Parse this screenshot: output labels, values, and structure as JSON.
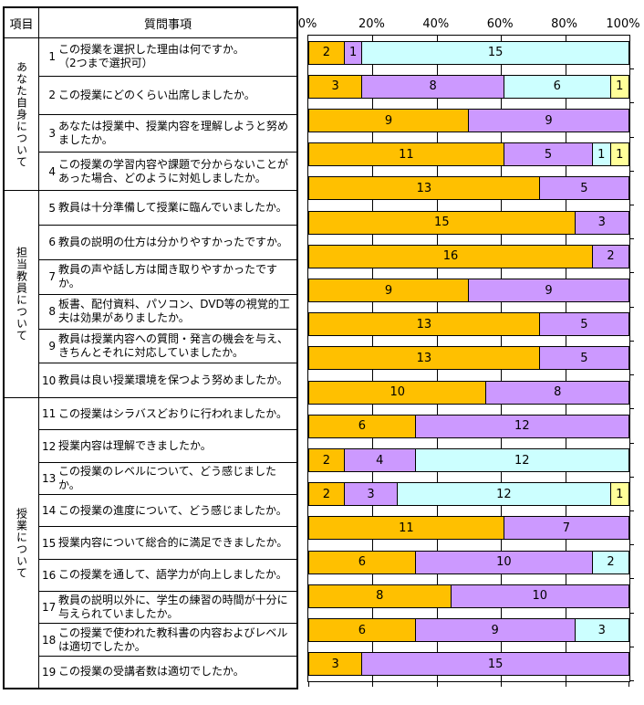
{
  "table": {
    "header": {
      "category_label": "項目",
      "question_label": "質問事項"
    },
    "groups": [
      {
        "label": "あなた自身について",
        "question_count": 4
      },
      {
        "label": "担当教員について",
        "question_count": 6
      },
      {
        "label": "授業について",
        "question_count": 9
      }
    ],
    "questions": [
      {
        "no": "1",
        "text": "この授業を選択した理由は何ですか。\n（2つまで選択可）"
      },
      {
        "no": "2",
        "text": "この授業にどのくらい出席しましたか。"
      },
      {
        "no": "3",
        "text": "あなたは授業中、授業内容を理解しようと努めましたか。"
      },
      {
        "no": "4",
        "text": "この授業の学習内容や課題で分からないことがあった場合、どのように対処しましたか。"
      },
      {
        "no": "5",
        "text": "教員は十分準備して授業に臨んでいましたか。"
      },
      {
        "no": "6",
        "text": "教員の説明の仕方は分かりやすかったですか。"
      },
      {
        "no": "7",
        "text": "教員の声や話し方は聞き取りやすかったですか。"
      },
      {
        "no": "8",
        "text": "板書、配付資料、パソコン、DVD等の視覚的工夫は効果がありましたか。"
      },
      {
        "no": "9",
        "text": "教員は授業内容への質問・発言の機会を与え、きちんとそれに対応していましたか。"
      },
      {
        "no": "10",
        "text": "教員は良い授業環境を保つよう努めましたか。"
      },
      {
        "no": "11",
        "text": "この授業はシラバスどおりに行われましたか。"
      },
      {
        "no": "12",
        "text": "授業内容は理解できましたか。"
      },
      {
        "no": "13",
        "text": "この授業のレベルについて、どう感じましたか。"
      },
      {
        "no": "14",
        "text": "この授業の進度について、どう感じましたか。"
      },
      {
        "no": "15",
        "text": "授業内容について総合的に満足できましたか。"
      },
      {
        "no": "16",
        "text": "この授業を通して、語学力が向上しましたか。"
      },
      {
        "no": "17",
        "text": "教員の説明以外に、学生の練習の時間が十分に与えられていましたか。"
      },
      {
        "no": "18",
        "text": "この授業で使われた教科書の内容およびレベルは適切でしたか。"
      },
      {
        "no": "19",
        "text": "この授業の受講者数は適切でしたか。"
      }
    ]
  },
  "chart_data": {
    "type": "bar",
    "orientation": "horizontal",
    "stacked": true,
    "axis": {
      "tick_labels": [
        "0%",
        "20%",
        "40%",
        "60%",
        "80%",
        "100%"
      ],
      "min": 0,
      "max": 100,
      "gridline_interval_percent": 20,
      "grid": true,
      "label_position": "top"
    },
    "total_per_row": 18,
    "segment_colors": [
      "#FFC000",
      "#CC99FF",
      "#CCFFFF",
      "#FFFF99"
    ],
    "rows": [
      {
        "question_no": "1",
        "values": [
          2,
          1,
          15
        ]
      },
      {
        "question_no": "2",
        "values": [
          3,
          8,
          6,
          1
        ]
      },
      {
        "question_no": "3",
        "values": [
          9,
          9
        ]
      },
      {
        "question_no": "4",
        "values": [
          11,
          5,
          1,
          1
        ]
      },
      {
        "question_no": "5",
        "values": [
          13,
          5
        ]
      },
      {
        "question_no": "6",
        "values": [
          15,
          3
        ]
      },
      {
        "question_no": "7",
        "values": [
          16,
          2
        ]
      },
      {
        "question_no": "8",
        "values": [
          9,
          9
        ]
      },
      {
        "question_no": "9",
        "values": [
          13,
          5
        ]
      },
      {
        "question_no": "10",
        "values": [
          13,
          5
        ]
      },
      {
        "question_no": "11",
        "values": [
          10,
          8
        ]
      },
      {
        "question_no": "12",
        "values": [
          6,
          12
        ]
      },
      {
        "question_no": "13",
        "values": [
          2,
          4,
          12
        ]
      },
      {
        "question_no": "14",
        "values": [
          2,
          3,
          12,
          1
        ]
      },
      {
        "question_no": "15",
        "values": [
          11,
          7
        ]
      },
      {
        "question_no": "16",
        "values": [
          6,
          10,
          2
        ]
      },
      {
        "question_no": "17",
        "values": [
          8,
          10
        ]
      },
      {
        "question_no": "18",
        "values": [
          6,
          9,
          3
        ]
      },
      {
        "question_no": "19",
        "values": [
          3,
          15
        ]
      }
    ]
  }
}
